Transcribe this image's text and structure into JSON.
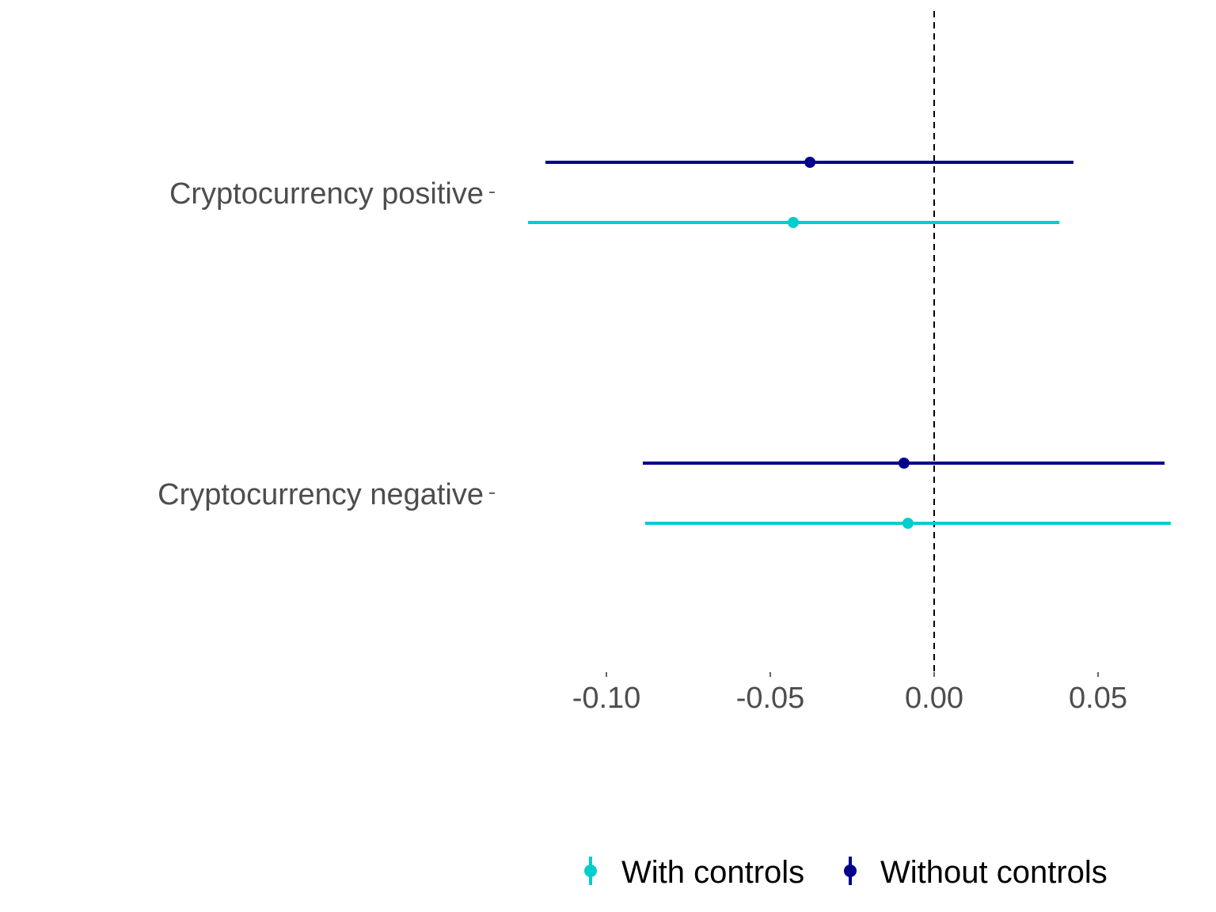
{
  "chart_data": {
    "type": "scatter",
    "subtype": "coefficient-plot",
    "title": "",
    "xlabel": "",
    "ylabel": "",
    "xlim": [
      -0.13,
      0.0785
    ],
    "xticks": [
      -0.1,
      -0.05,
      0.0,
      0.05
    ],
    "xtick_labels": [
      "-0.10",
      "-0.05",
      "0.00",
      "0.05"
    ],
    "reference_line": 0,
    "grid": false,
    "categories": [
      "Cryptocurrency positive",
      "Cryptocurrency negative"
    ],
    "series": [
      {
        "name": "With controls",
        "color": "#00CDCD",
        "estimates": [
          -0.043,
          -0.008
        ],
        "ci_low": [
          -0.1239,
          -0.0882
        ],
        "ci_high": [
          0.0382,
          0.0722
        ]
      },
      {
        "name": "Without controls",
        "color": "#00008B",
        "estimates": [
          -0.0379,
          -0.0092
        ],
        "ci_low": [
          -0.1186,
          -0.0889
        ],
        "ci_high": [
          0.0425,
          0.0703
        ]
      }
    ],
    "legend": {
      "position": "bottom",
      "entries": [
        "With controls",
        "Without controls"
      ]
    }
  }
}
